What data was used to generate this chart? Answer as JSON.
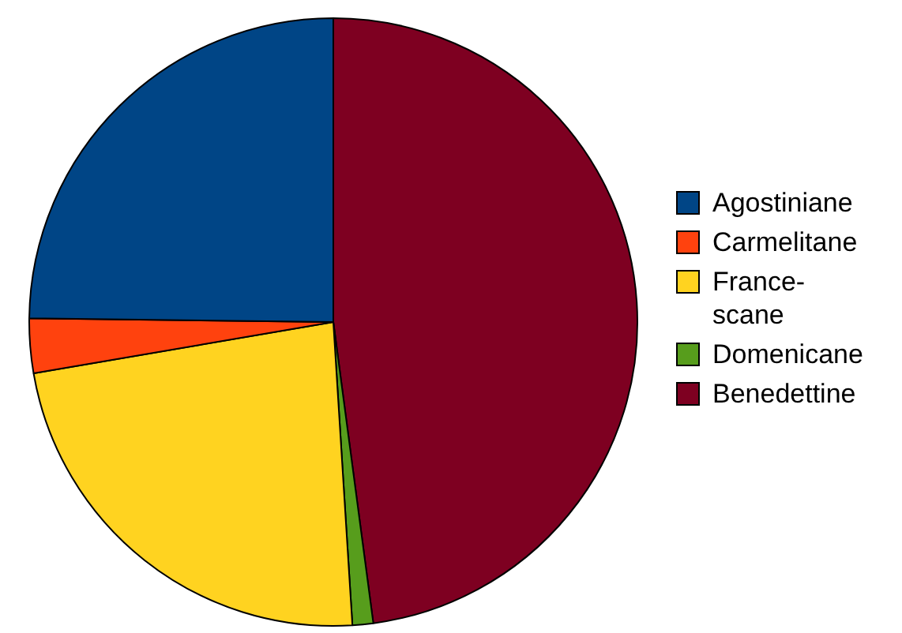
{
  "chart_data": {
    "type": "pie",
    "categories": [
      "Agostiniane",
      "Carmelitane",
      "France-scane",
      "Domenicane",
      "Benedettine"
    ],
    "values": [
      24.8,
      2.9,
      23.3,
      1.1,
      47.9
    ],
    "colors": [
      "#004586",
      "#ff420e",
      "#ffd320",
      "#579d1c",
      "#7e0021"
    ],
    "legend": "right"
  }
}
